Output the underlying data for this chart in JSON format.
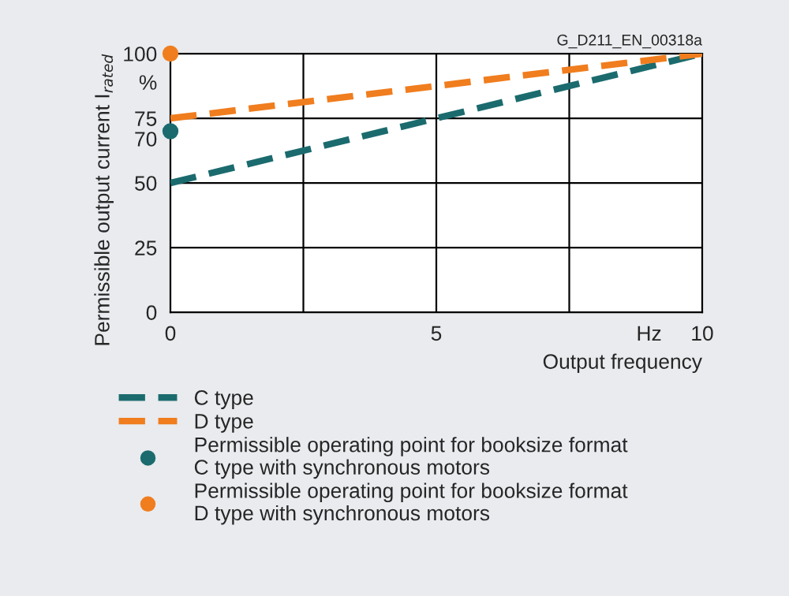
{
  "chart_data": {
    "type": "line",
    "xlabel": "Output frequency",
    "ylabel": "Permissible output current I$_{rated}$",
    "x": [
      0,
      10
    ],
    "series": [
      {
        "name": "C type",
        "color": "#1b6b6e",
        "values": [
          50,
          100
        ],
        "line_style": "dashed",
        "marker": "none"
      },
      {
        "name": "D type",
        "color": "#f07d1e",
        "values": [
          75,
          100
        ],
        "line_style": "dashed",
        "marker": "none"
      },
      {
        "name": "Permissible operating point for booksize format\nC type with synchronous motors",
        "type": "scatter",
        "color": "#1b6b6e",
        "x": [
          0
        ],
        "values": [
          70
        ],
        "marker": "circle"
      },
      {
        "name": "Permissible operating point for booksize format\nD type with synchronous motors",
        "type": "scatter",
        "color": "#f07d1e",
        "x": [
          0
        ],
        "values": [
          100
        ],
        "marker": "circle"
      }
    ],
    "xlim": [
      0,
      10
    ],
    "ylim": [
      0,
      100
    ],
    "xticks": [
      0,
      5,
      {
        "value": 9,
        "label": "Hz"
      },
      10
    ],
    "yticks": [
      0,
      25,
      50,
      70,
      75,
      {
        "value": 89,
        "label": "%"
      },
      100
    ],
    "ref_lines": [
      {
        "axis": "x",
        "value": 2.5,
        "color": "#000000"
      },
      {
        "axis": "x",
        "value": 5,
        "color": "#000000"
      },
      {
        "axis": "x",
        "value": 7.5,
        "color": "#000000"
      },
      {
        "axis": "y",
        "value": 25,
        "color": "#000000"
      },
      {
        "axis": "y",
        "value": 50,
        "color": "#000000"
      },
      {
        "axis": "y",
        "value": 75,
        "color": "#000000"
      }
    ],
    "legend": "bottom",
    "annotations": [
      "G_D211_EN_00318a"
    ]
  }
}
